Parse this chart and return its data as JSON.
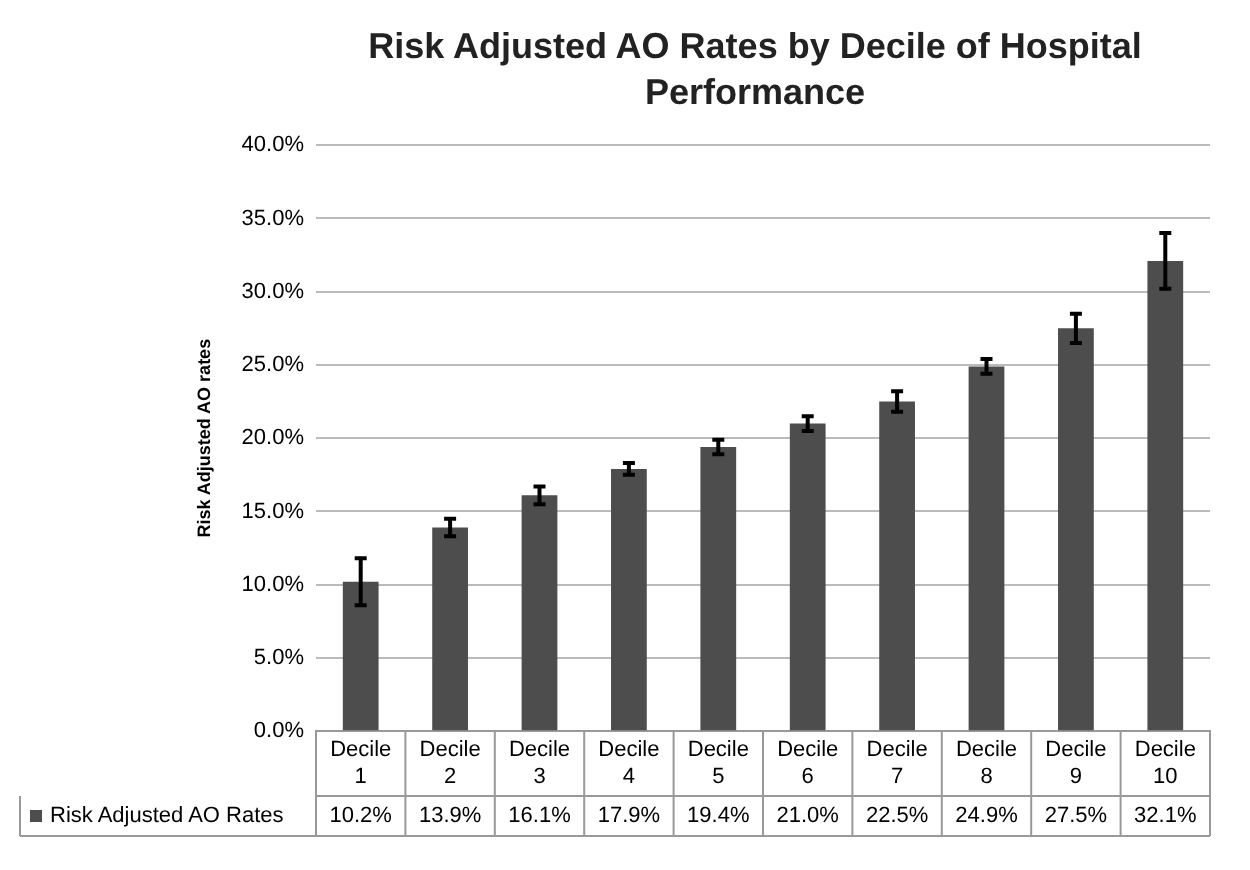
{
  "chart_data": {
    "type": "bar",
    "title": "Risk Adjusted AO Rates by Decile of Hospital Performance",
    "ylabel": "Risk Adjusted AO rates",
    "categories": [
      "Decile 1",
      "Decile 2",
      "Decile 3",
      "Decile 4",
      "Decile 5",
      "Decile 6",
      "Decile 7",
      "Decile 8",
      "Decile 9",
      "Decile 10"
    ],
    "series": [
      {
        "name": "Risk Adjusted AO Rates",
        "color": "#4d4d4d",
        "values": [
          10.2,
          13.9,
          16.1,
          17.9,
          19.4,
          21.0,
          22.5,
          24.9,
          27.5,
          32.1
        ],
        "errors": [
          1.6,
          0.6,
          0.6,
          0.4,
          0.5,
          0.5,
          0.7,
          0.5,
          1.0,
          1.9
        ],
        "value_labels": [
          "10.2%",
          "13.9%",
          "16.1%",
          "17.9%",
          "19.4%",
          "21.0%",
          "22.5%",
          "24.9%",
          "27.5%",
          "32.1%"
        ]
      }
    ],
    "ylim": [
      0,
      40
    ],
    "yticks": [
      {
        "value": 0,
        "label": "0.0%"
      },
      {
        "value": 5,
        "label": "5.0%"
      },
      {
        "value": 10,
        "label": "10.0%"
      },
      {
        "value": 15,
        "label": "15.0%"
      },
      {
        "value": 20,
        "label": "20.0%"
      },
      {
        "value": 25,
        "label": "25.0%"
      },
      {
        "value": 30,
        "label": "30.0%"
      },
      {
        "value": 35,
        "label": "35.0%"
      },
      {
        "value": 40,
        "label": "40.0%"
      }
    ],
    "grid": "y",
    "legend": "bottom"
  }
}
